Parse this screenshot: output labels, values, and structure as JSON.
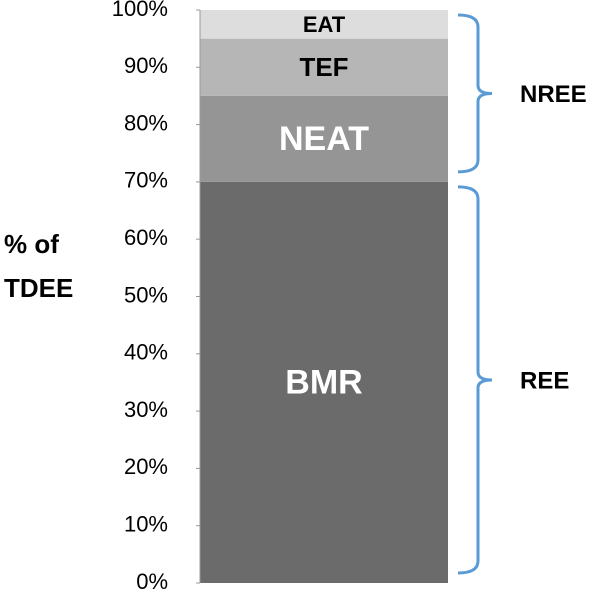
{
  "chart_data": {
    "type": "stacked-bar",
    "y_label": "% of TDEE",
    "categories": [
      null
    ],
    "series": [
      {
        "name": "BMR",
        "color": "#6b6b6b",
        "label_color": "#ffffff",
        "values": [
          70
        ]
      },
      {
        "name": "NEAT",
        "color": "#959595",
        "label_color": "#ffffff",
        "values": [
          15
        ]
      },
      {
        "name": "TEF",
        "color": "#b6b6b6",
        "label_color": "#000000",
        "values": [
          10
        ]
      },
      {
        "name": "EAT",
        "color": "#dddddd",
        "label_color": "#000000",
        "values": [
          5
        ]
      }
    ],
    "ylim": [
      0,
      100
    ],
    "yticks": [
      {
        "value": 0,
        "label": "0%"
      },
      {
        "value": 10,
        "label": "10%"
      },
      {
        "value": 20,
        "label": "20%"
      },
      {
        "value": 30,
        "label": "30%"
      },
      {
        "value": 40,
        "label": "40%"
      },
      {
        "value": 50,
        "label": "50%"
      },
      {
        "value": 60,
        "label": "60%"
      },
      {
        "value": 70,
        "label": "70%"
      },
      {
        "value": 80,
        "label": "80%"
      },
      {
        "value": 90,
        "label": "90%"
      },
      {
        "value": 100,
        "label": "100%"
      }
    ],
    "brackets": [
      {
        "label": "REE",
        "from": 0,
        "to": 70,
        "color": "#5b9bd5"
      },
      {
        "label": "NREE",
        "from": 70,
        "to": 100,
        "color": "#5b9bd5"
      }
    ]
  }
}
